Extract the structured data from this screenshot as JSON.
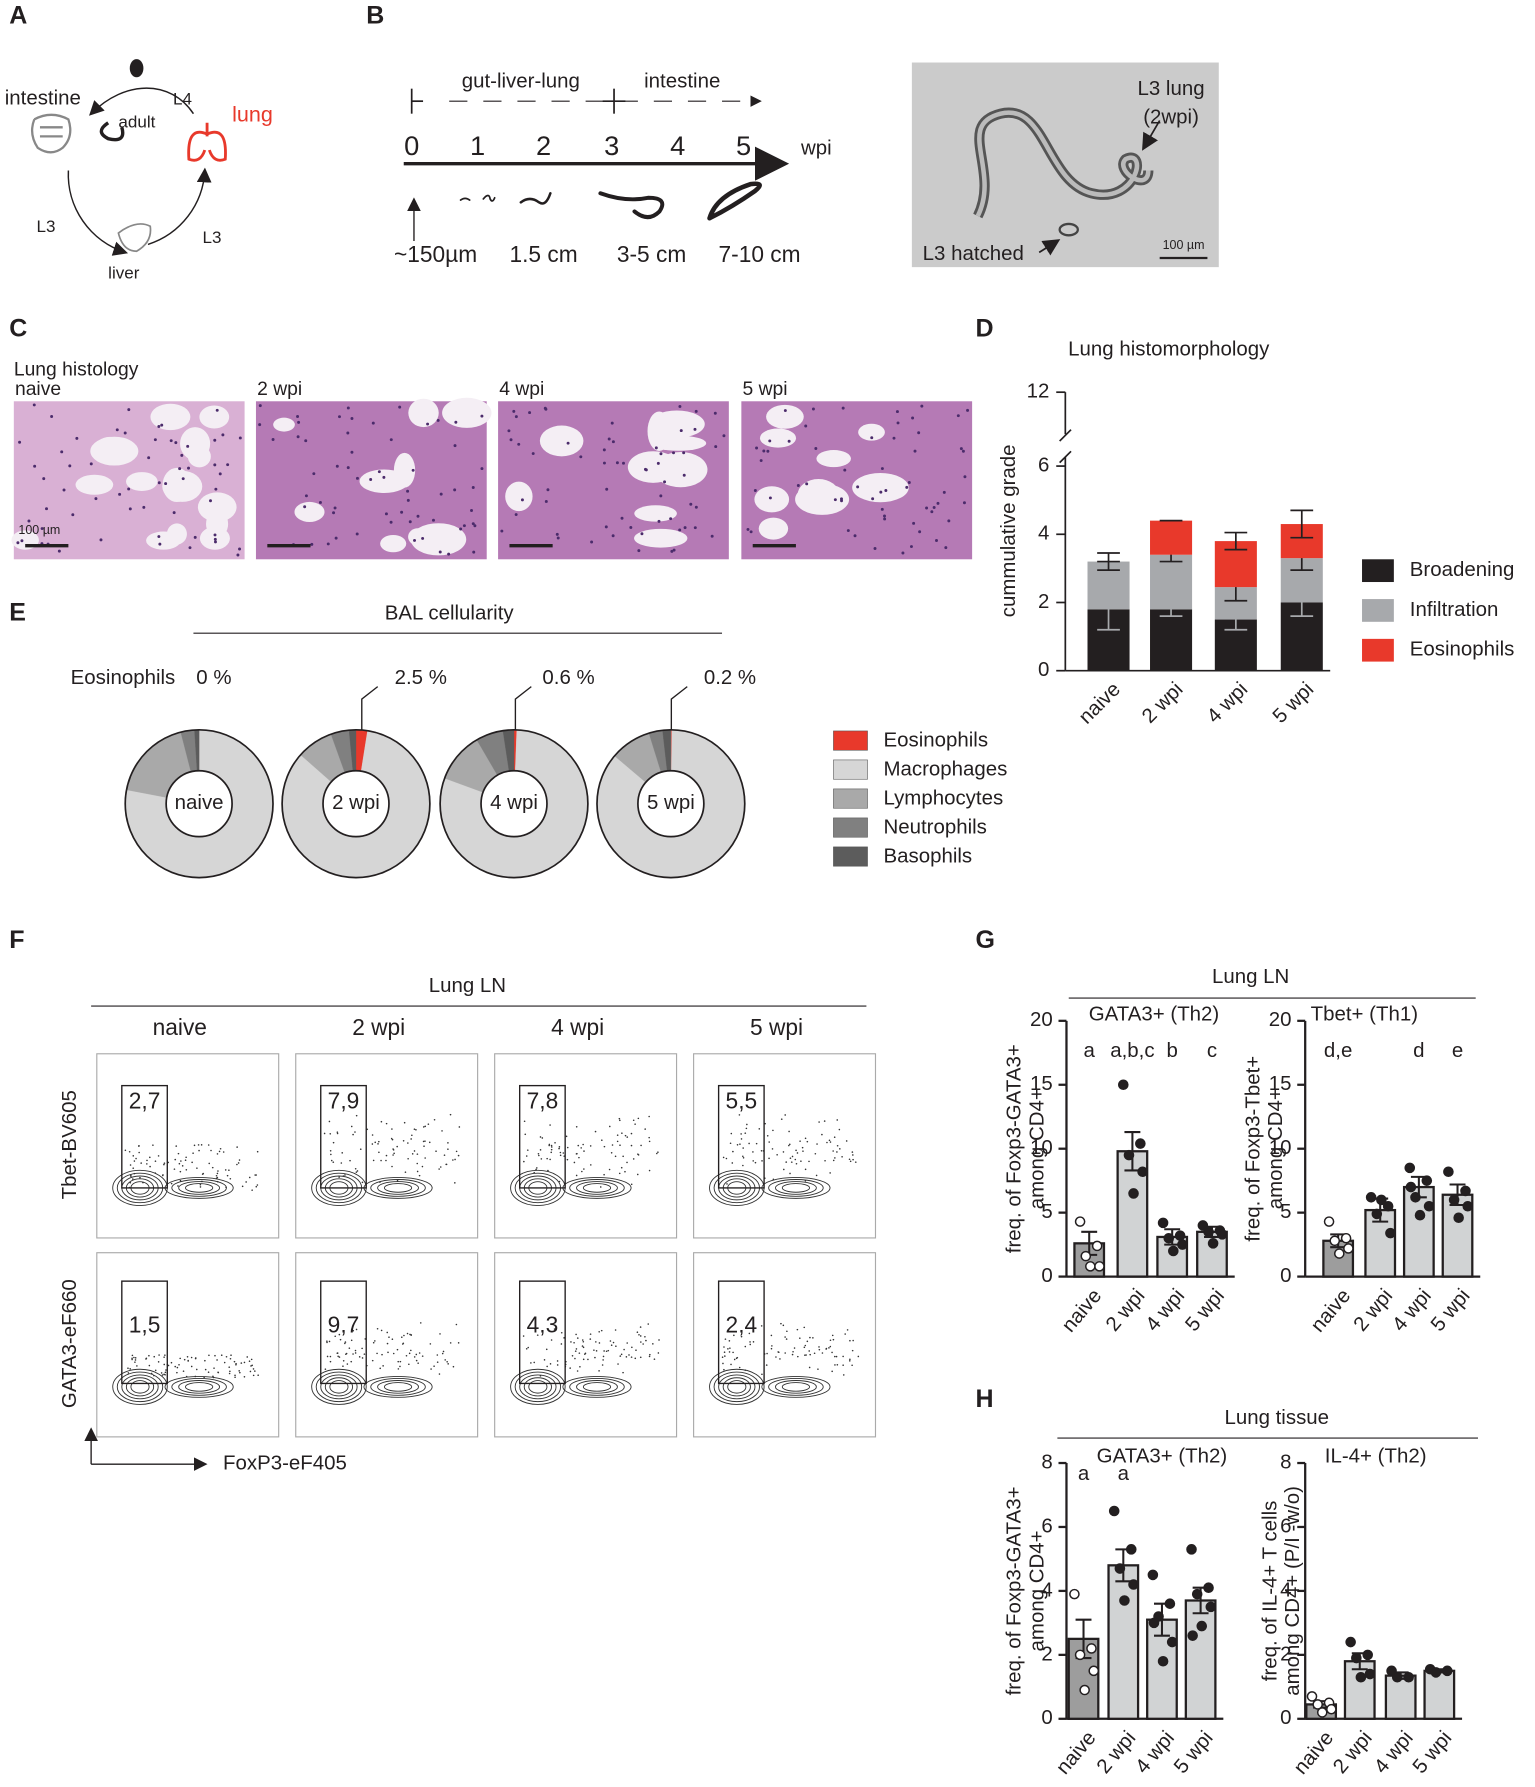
{
  "panel_labels": [
    "A",
    "B",
    "C",
    "D",
    "E",
    "F",
    "G",
    "H"
  ],
  "lifecycle": {
    "labels": [
      "intestine",
      "adult",
      "L4",
      "lung",
      "L3",
      "liver",
      "L3"
    ]
  },
  "timeline": {
    "phases": [
      "gut-liver-lung",
      "intestine"
    ],
    "weeks": [
      "0",
      "1",
      "2",
      "3",
      "4",
      "5"
    ],
    "unit": "wpi",
    "lengths": [
      "~150µm",
      "1.5 cm",
      "3-5 cm",
      "7-10 cm"
    ]
  },
  "micrograph": {
    "labels": [
      "L3 lung",
      "(2wpi)",
      "L3 hatched"
    ],
    "scale_bar": "100 µm"
  },
  "histology": {
    "title": "Lung histology",
    "panels": [
      "naive",
      "2 wpi",
      "4 wpi",
      "5 wpi"
    ],
    "scale_bar": "100 µm"
  },
  "flow": {
    "title": "Lung LN",
    "columns": [
      "naive",
      "2 wpi",
      "4 wpi",
      "5 wpi"
    ],
    "row_axes": [
      "Tbet-BV605",
      "GATA3-eF660"
    ],
    "x_axis": "FoxP3-eF405",
    "gates": [
      [
        "2,7",
        "7,9",
        "7,8",
        "5,5"
      ],
      [
        "1,5",
        "9,7",
        "4,3",
        "2,4"
      ]
    ]
  },
  "groups": [
    "Lung LN",
    "Lung tissue"
  ],
  "chart_data": [
    {
      "type": "stacked_bar",
      "title": "Lung histomorphology",
      "ylabel": "cummulative grade",
      "categories": [
        "naive",
        "2 wpi",
        "4 wpi",
        "5 wpi"
      ],
      "series": [
        {
          "name": "Broadening",
          "color": "#231f20",
          "values": [
            1.8,
            1.8,
            1.5,
            2.0
          ],
          "errors": [
            0.6,
            0.2,
            0.3,
            0.4
          ]
        },
        {
          "name": "Infiltration",
          "color": "#a7a9ac",
          "values": [
            1.4,
            1.6,
            0.95,
            1.3
          ],
          "errors": [
            0.25,
            0.2,
            0.4,
            0.35
          ]
        },
        {
          "name": "Eosinophils",
          "color": "#e8392b",
          "values": [
            0,
            1.0,
            1.35,
            1.0
          ],
          "errors": [
            0,
            0,
            0.25,
            0.4
          ]
        }
      ],
      "ylim": [
        0,
        12
      ],
      "yticks": [
        0,
        2,
        4,
        6,
        12
      ],
      "axis_break": 6
    },
    {
      "type": "donut",
      "title": "BAL cellularity",
      "row_label": "Eosinophils",
      "categories": [
        "naive",
        "2 wpi",
        "4 wpi",
        "5 wpi"
      ],
      "series": [
        {
          "name": "Eosinophils",
          "color": "#e8392b",
          "values": [
            0,
            2.5,
            0.6,
            0.2
          ],
          "value_labels": [
            "0 %",
            "2.5 %",
            "0.6 %",
            "0.2 %"
          ]
        },
        {
          "name": "Macrophages",
          "color": "#d6d6d6",
          "values": [
            78,
            84,
            80,
            86
          ]
        },
        {
          "name": "Lymphocytes",
          "color": "#a9a9a9",
          "values": [
            18,
            8,
            11,
            9
          ]
        },
        {
          "name": "Neutrophils",
          "color": "#808080",
          "values": [
            3,
            4,
            6,
            3
          ]
        },
        {
          "name": "Basophils",
          "color": "#5c5c5c",
          "values": [
            1,
            1.5,
            2.4,
            1.8
          ]
        }
      ]
    },
    {
      "type": "bar_dots",
      "title": "GATA3+ (Th2)",
      "ylabel": [
        "freq. of Foxp3-GATA3+",
        "among CD4+"
      ],
      "categories": [
        "naive",
        "2 wpi",
        "4 wpi",
        "5 wpi"
      ],
      "values": [
        2.6,
        9.8,
        3.1,
        3.5
      ],
      "errors": [
        0.9,
        1.5,
        0.6,
        0.4
      ],
      "points": [
        [
          4.3,
          2.4,
          1.6,
          0.8,
          0.8
        ],
        [
          15,
          10.4,
          9.5,
          8.2,
          6.5
        ],
        [
          4.2,
          3.2,
          3.0,
          2.5,
          2.0
        ],
        [
          4.0,
          3.6,
          3.5,
          3.3,
          2.6
        ]
      ],
      "letters": [
        "a",
        "a,b,c",
        "b",
        "c"
      ],
      "colors": [
        "#9d9d9d",
        "#d1d3d4",
        "#d1d3d4",
        "#d1d3d4"
      ],
      "point_fills": [
        "#ffffff",
        "#231f20",
        "#231f20",
        "#231f20"
      ],
      "ylim": [
        0,
        20
      ],
      "yticks": [
        0,
        5,
        10,
        15,
        20
      ]
    },
    {
      "type": "bar_dots",
      "title": "Tbet+ (Th1)",
      "ylabel": [
        "freq. of Foxp3-Tbet+",
        "among CD4+"
      ],
      "categories": [
        "naive",
        "2 wpi",
        "4 wpi",
        "5 wpi"
      ],
      "values": [
        2.8,
        5.2,
        7.0,
        6.4
      ],
      "errors": [
        0.5,
        0.9,
        0.8,
        0.8
      ],
      "points": [
        [
          4.3,
          3.0,
          2.8,
          2.2,
          1.8
        ],
        [
          6.2,
          5.5,
          4.9,
          3.4,
          6.0
        ],
        [
          8.5,
          7.5,
          6.2,
          5.5,
          4.8,
          7.0
        ],
        [
          8.2,
          6.7,
          6.0,
          5.5,
          4.6
        ]
      ],
      "letters": [
        "d,e",
        null,
        "d",
        "e"
      ],
      "colors": [
        "#9d9d9d",
        "#d1d3d4",
        "#d1d3d4",
        "#d1d3d4"
      ],
      "point_fills": [
        "#ffffff",
        "#231f20",
        "#231f20",
        "#231f20"
      ],
      "ylim": [
        0,
        20
      ],
      "yticks": [
        0,
        5,
        10,
        15,
        20
      ]
    },
    {
      "type": "bar_dots",
      "title": "GATA3+ (Th2)",
      "ylabel": [
        "freq. of Foxp3-GATA3+",
        "among CD4+"
      ],
      "categories": [
        "naive",
        "2 wpi",
        "4 wpi",
        "5 wpi"
      ],
      "values": [
        2.5,
        4.8,
        3.1,
        3.7
      ],
      "errors": [
        0.6,
        0.5,
        0.5,
        0.4
      ],
      "points": [
        [
          3.9,
          2.2,
          2.0,
          1.5,
          0.9
        ],
        [
          6.5,
          5.3,
          4.7,
          4.2,
          3.7
        ],
        [
          4.5,
          3.6,
          3.2,
          2.4,
          1.8,
          3.0
        ],
        [
          5.3,
          4.1,
          3.9,
          3.5,
          2.9,
          2.6
        ]
      ],
      "letters": [
        "a",
        "a",
        null,
        null
      ],
      "colors": [
        "#9d9d9d",
        "#d1d3d4",
        "#d1d3d4",
        "#d1d3d4"
      ],
      "point_fills": [
        "#ffffff",
        "#231f20",
        "#231f20",
        "#231f20"
      ],
      "ylim": [
        0,
        8
      ],
      "yticks": [
        0,
        2,
        4,
        6,
        8
      ]
    },
    {
      "type": "bar_dots",
      "title": "IL-4+ (Th2)",
      "ylabel": [
        "freq. of IL-4+ T cells",
        "among CD4+ (P/I -w/o)"
      ],
      "categories": [
        "naive",
        "2 wpi",
        "4 wpi",
        "5 wpi"
      ],
      "values": [
        0.45,
        1.8,
        1.35,
        1.5
      ],
      "errors": [
        0.1,
        0.25,
        0.1,
        0.05
      ],
      "points": [
        [
          0.7,
          0.5,
          0.45,
          0.3,
          0.2
        ],
        [
          2.4,
          2.0,
          1.9,
          1.4,
          1.3
        ],
        [
          1.5,
          1.3,
          1.3
        ],
        [
          1.55,
          1.5,
          1.45
        ]
      ],
      "letters": [
        null,
        null,
        null,
        null
      ],
      "colors": [
        "#9d9d9d",
        "#d1d3d4",
        "#d1d3d4",
        "#d1d3d4"
      ],
      "point_fills": [
        "#ffffff",
        "#231f20",
        "#231f20",
        "#231f20"
      ],
      "ylim": [
        0,
        8
      ],
      "yticks": [
        0,
        2,
        4,
        6,
        8
      ]
    }
  ]
}
